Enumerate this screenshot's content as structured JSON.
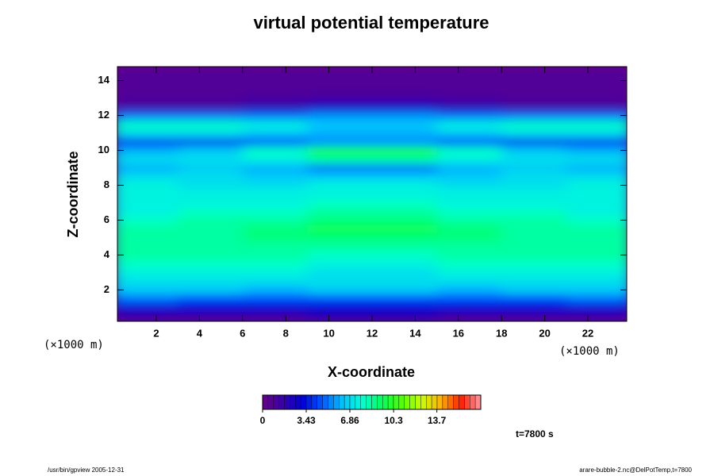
{
  "chart_data": {
    "type": "heatmap",
    "title": "virtual potential temperature",
    "x_label": "X-coordinate",
    "y_label": "Z-coordinate",
    "x_unit": "(×1000 m)",
    "y_unit": "(×1000 m)",
    "time_label": "t=7800 s",
    "footer_left": "/usr/bin/gpview 2005-12-31",
    "footer_right": "arare-bubble-2.nc@DelPotTemp,t=7800",
    "xlim": [
      0.2,
      23.8
    ],
    "ylim": [
      0.2,
      14.8
    ],
    "xticks": [
      2,
      4,
      6,
      8,
      10,
      12,
      14,
      16,
      18,
      20,
      22
    ],
    "yticks": [
      2,
      4,
      6,
      8,
      10,
      12,
      14
    ],
    "x": [
      1.5,
      4.5,
      7.5,
      10.5,
      13.5,
      16.5,
      19.5,
      22.5
    ],
    "y": [
      0.5,
      1.0,
      1.5,
      2.0,
      2.5,
      3.0,
      3.5,
      4.0,
      4.5,
      5.0,
      5.5,
      6.0,
      6.5,
      7.0,
      7.5,
      8.0,
      8.5,
      9.0,
      9.5,
      10.0,
      10.5,
      11.0,
      11.5,
      12.0,
      12.5,
      13.0,
      13.5,
      14.0,
      14.5
    ],
    "z": [
      [
        1.5,
        1.5,
        1.5,
        2,
        2,
        1.5,
        1.5,
        1.5
      ],
      [
        3,
        3,
        3,
        3,
        3,
        3,
        3,
        3
      ],
      [
        5,
        4.5,
        4.5,
        4.5,
        4.5,
        4.5,
        4.5,
        5
      ],
      [
        6.5,
        6.5,
        6,
        6.5,
        6.5,
        6,
        6.5,
        6.5
      ],
      [
        7,
        7,
        7,
        7,
        7,
        7,
        7,
        7
      ],
      [
        7.5,
        7.5,
        7.5,
        7,
        7,
        7.5,
        7.5,
        7.5
      ],
      [
        8,
        8,
        8,
        7.5,
        7.5,
        8,
        8,
        8
      ],
      [
        8.5,
        8.5,
        8.5,
        8,
        8,
        8.5,
        8.5,
        8.5
      ],
      [
        8.5,
        8.5,
        8.5,
        8.5,
        8.5,
        8.5,
        8.5,
        8.5
      ],
      [
        8.5,
        8.5,
        9,
        9,
        9,
        9,
        8.5,
        8.5
      ],
      [
        8.5,
        8.5,
        9,
        9.5,
        9.5,
        9,
        8.5,
        8.5
      ],
      [
        8,
        8.5,
        8.5,
        9,
        9,
        8.5,
        8.5,
        8
      ],
      [
        7.5,
        8,
        8,
        8.5,
        8.5,
        8,
        8,
        7.5
      ],
      [
        7.5,
        7.5,
        7.5,
        8,
        8,
        7.5,
        7.5,
        7.5
      ],
      [
        7.5,
        7.5,
        7.5,
        7.5,
        7.5,
        7.5,
        7.5,
        7.5
      ],
      [
        7.5,
        7,
        7,
        7.5,
        7.5,
        7,
        7,
        7.5
      ],
      [
        7,
        7,
        6.5,
        6.5,
        6.5,
        6.5,
        7,
        7
      ],
      [
        6,
        6.5,
        6,
        5,
        5,
        6,
        6.5,
        6
      ],
      [
        7,
        7,
        7.5,
        8.5,
        8.5,
        7.5,
        7,
        7
      ],
      [
        6,
        6.5,
        8,
        9.5,
        9.5,
        8,
        6.5,
        6
      ],
      [
        4,
        4,
        4.5,
        5.5,
        5.5,
        4.5,
        4,
        4
      ],
      [
        7,
        7,
        6.5,
        6,
        6,
        6.5,
        7,
        7
      ],
      [
        8,
        8,
        7.5,
        6.5,
        6.5,
        7.5,
        8,
        8
      ],
      [
        5,
        5,
        5,
        5.5,
        5.5,
        5,
        5,
        5
      ],
      [
        1.5,
        1.5,
        2,
        2.5,
        2.5,
        2,
        1.5,
        1.5
      ],
      [
        0.8,
        0.8,
        1,
        1.2,
        1.2,
        1,
        0.8,
        0.8
      ],
      [
        0.8,
        0.8,
        0.8,
        0.8,
        0.8,
        0.8,
        0.8,
        0.8
      ],
      [
        0.8,
        0.8,
        0.8,
        0.8,
        0.8,
        0.8,
        0.8,
        0.8
      ],
      [
        0.8,
        0.8,
        0.8,
        0.8,
        0.8,
        0.8,
        0.8,
        0.8
      ]
    ],
    "colorbar": {
      "lim": [
        0,
        17.15
      ],
      "ticks": [
        0,
        3.43,
        6.86,
        10.3,
        13.7
      ],
      "colors": [
        "#6a0088",
        "#3a00a8",
        "#0000d8",
        "#0058ff",
        "#00c0ff",
        "#00ffd8",
        "#00ff60",
        "#50ff00",
        "#c8ff00",
        "#ffb000",
        "#ff2000",
        "#ff9aa8"
      ]
    }
  }
}
